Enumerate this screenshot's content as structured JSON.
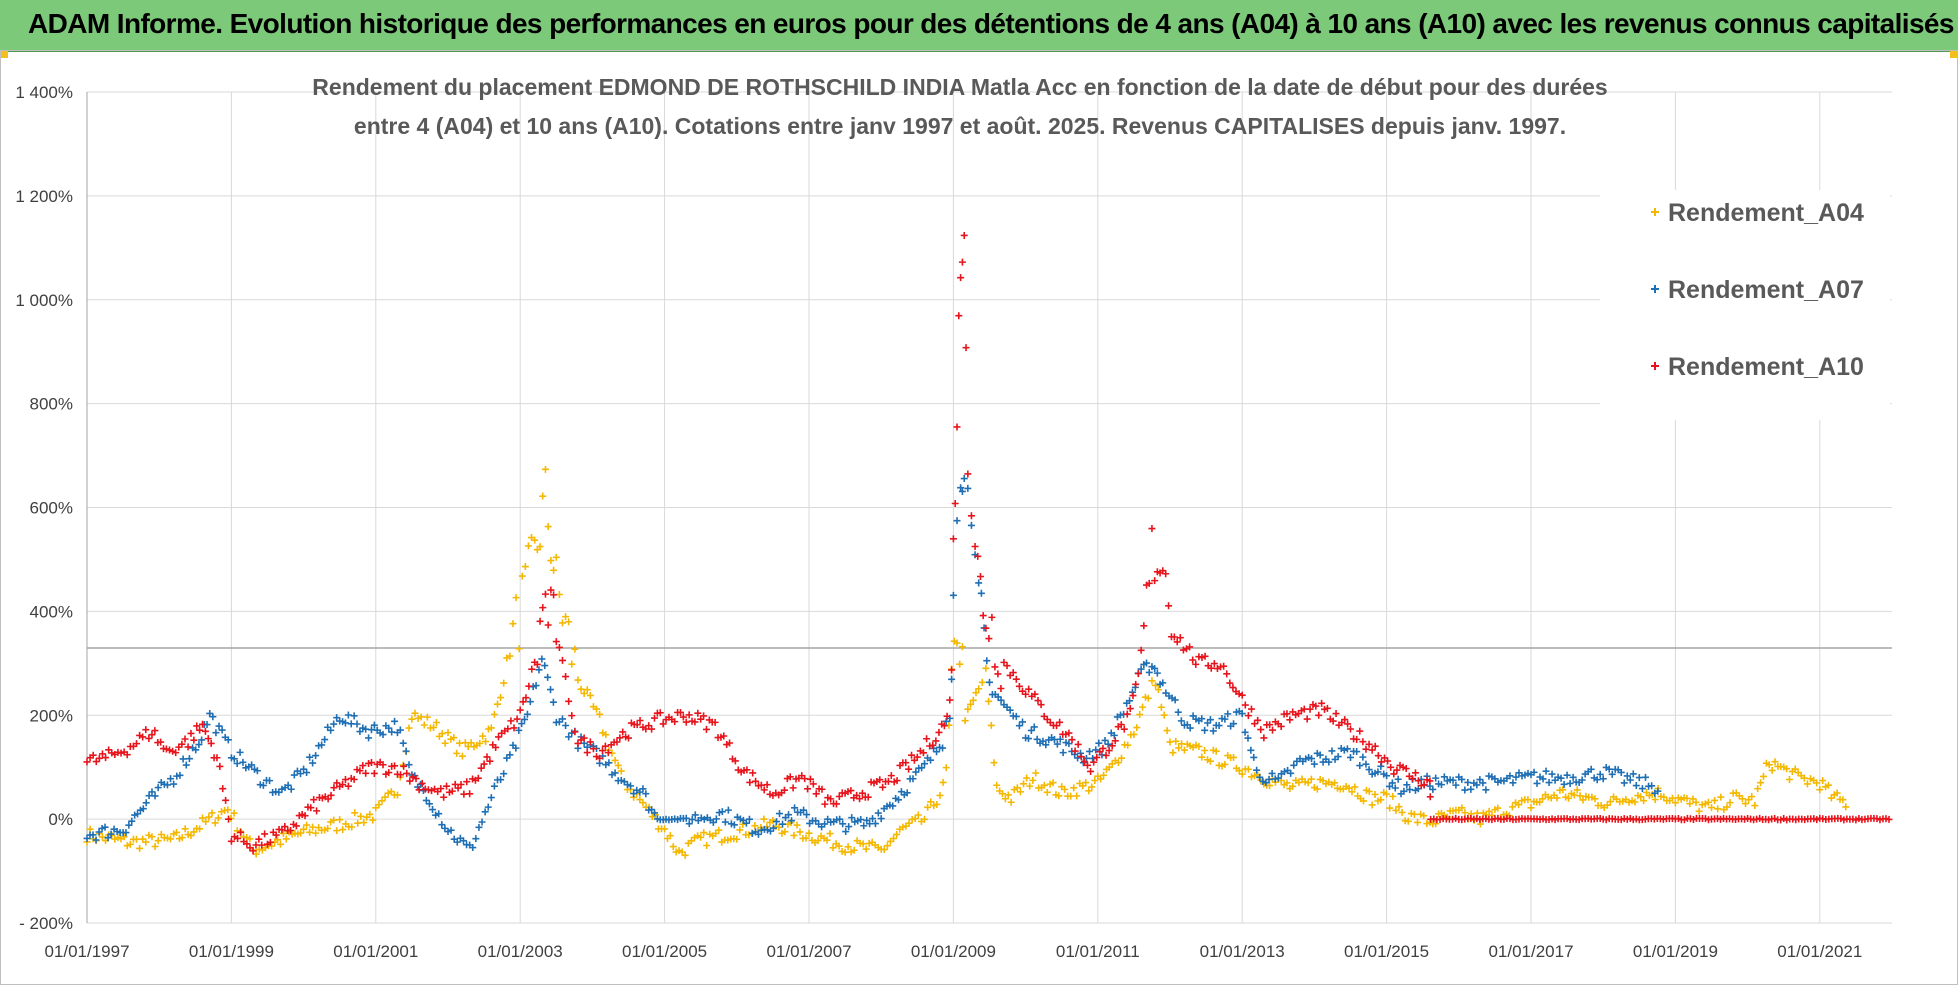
{
  "banner": {
    "title": "ADAM Informe. Evolution historique des performances en euros pour des détentions de 4 ans (A04) à 10 ans (A10) avec les revenus connus capitalisés"
  },
  "chart_data": {
    "type": "scatter",
    "title_lines": [
      "Rendement du placement EDMOND DE ROTHSCHILD INDIA Matla Acc en fonction de la date de début pour des durées",
      "entre 4 (A04) et 10 ans (A10).  Cotations entre janv 1997 et août. 2025. Revenus CAPITALISES depuis janv. 1997."
    ],
    "xlabel": "",
    "ylabel": "",
    "x_range": [
      "1997-01-01",
      "2022-01-01"
    ],
    "ylim": [
      -200,
      1400
    ],
    "y_ticks": [
      -200,
      0,
      200,
      400,
      600,
      800,
      1000,
      1200,
      1400
    ],
    "y_tick_labels": [
      "- 200%",
      "0%",
      "200%",
      "400%",
      "600%",
      "800%",
      "1 000%",
      "1 200%",
      "1 400%"
    ],
    "x_tick_labels": [
      "01/01/1997",
      "01/01/1999",
      "01/01/2001",
      "01/01/2003",
      "01/01/2005",
      "01/01/2007",
      "01/01/2009",
      "01/01/2011",
      "01/01/2013",
      "01/01/2015",
      "01/01/2017",
      "01/01/2019",
      "01/01/2021"
    ],
    "x_tick_years": [
      1997,
      1999,
      2001,
      2003,
      2005,
      2007,
      2009,
      2011,
      2013,
      2015,
      2017,
      2019,
      2021
    ],
    "grid": true,
    "legend_position": "top-right",
    "marker": "+",
    "series": [
      {
        "name": "Rendement_A04",
        "color": "#f5b800",
        "x": [
          1997.0,
          1997.6,
          1998.2,
          1998.6,
          1998.95,
          1999.3,
          1999.6,
          2000.0,
          2000.5,
          2001.0,
          2001.3,
          2001.5,
          2001.8,
          2002.2,
          2002.6,
          2002.9,
          2003.2,
          2003.35,
          2003.5,
          2003.8,
          2004.1,
          2004.4,
          2004.7,
          2005.0,
          2005.2,
          2005.5,
          2006.0,
          2006.5,
          2007.0,
          2007.5,
          2008.0,
          2008.3,
          2008.6,
          2008.9,
          2009.05,
          2009.2,
          2009.35,
          2009.45,
          2009.6,
          2009.8,
          2010.1,
          2010.5,
          2011.0,
          2011.2,
          2011.5,
          2011.7,
          2011.8,
          2012.0,
          2012.4,
          2012.8,
          2013.0,
          2013.3,
          2013.7,
          2014.0,
          2014.4,
          2014.8,
          2015.0,
          2015.3,
          2015.6,
          2016.0,
          2016.3,
          2016.7,
          2017.0,
          2017.4,
          2017.8,
          2018.1,
          2018.4,
          2018.8,
          2019.2,
          2019.5,
          2019.8,
          2020.1,
          2020.3,
          2020.7,
          2021.0,
          2021.2,
          2021.4
        ],
        "y": [
          -30,
          -45,
          -40,
          -10,
          20,
          -60,
          -45,
          -25,
          -10,
          10,
          60,
          200,
          180,
          130,
          170,
          350,
          500,
          620,
          450,
          270,
          190,
          80,
          30,
          -20,
          -65,
          -40,
          -25,
          -10,
          -30,
          -50,
          -60,
          -20,
          0,
          70,
          380,
          200,
          250,
          280,
          60,
          40,
          80,
          50,
          70,
          100,
          170,
          240,
          270,
          140,
          130,
          110,
          100,
          80,
          60,
          70,
          70,
          40,
          40,
          5,
          -5,
          10,
          0,
          20,
          30,
          50,
          40,
          30,
          45,
          50,
          30,
          20,
          40,
          35,
          110,
          80,
          70,
          40,
          30
        ]
      },
      {
        "name": "Rendement_A07",
        "color": "#1f6fb5",
        "x": [
          1997.0,
          1997.5,
          1997.9,
          1998.2,
          1998.55,
          1998.7,
          1999.0,
          1999.4,
          1999.7,
          2000.0,
          2000.5,
          2000.9,
          2001.3,
          2001.5,
          2001.7,
          2002.0,
          2002.3,
          2002.6,
          2002.9,
          2003.1,
          2003.3,
          2003.5,
          2003.8,
          2004.1,
          2004.4,
          2004.7,
          2004.9,
          2005.3,
          2005.8,
          2006.3,
          2006.8,
          2007.3,
          2007.8,
          2008.2,
          2008.6,
          2008.85,
          2008.95,
          2009.0,
          2009.1,
          2009.15,
          2009.25,
          2009.35,
          2009.5,
          2009.7,
          2010.0,
          2010.4,
          2010.8,
          2011.1,
          2011.4,
          2011.6,
          2011.75,
          2011.9,
          2012.2,
          2012.6,
          2013.0,
          2013.2,
          2013.5,
          2013.8,
          2014.2,
          2014.5,
          2014.8,
          2015.2,
          2015.6,
          2016.0,
          2016.5,
          2017.0,
          2017.5,
          2018.0,
          2018.5,
          2018.8
        ],
        "y": [
          -30,
          -20,
          40,
          80,
          150,
          200,
          130,
          80,
          50,
          90,
          200,
          170,
          180,
          80,
          50,
          -20,
          -60,
          40,
          130,
          200,
          310,
          200,
          150,
          120,
          80,
          50,
          0,
          0,
          10,
          -20,
          10,
          -10,
          -10,
          40,
          100,
          150,
          250,
          420,
          680,
          720,
          500,
          410,
          260,
          220,
          170,
          150,
          120,
          140,
          220,
          280,
          300,
          260,
          190,
          180,
          200,
          90,
          70,
          110,
          120,
          130,
          100,
          60,
          70,
          70,
          70,
          80,
          80,
          90,
          70,
          60
        ]
      },
      {
        "name": "Rendement_A10",
        "color": "#e8141c",
        "x": [
          1997.0,
          1997.3,
          1997.6,
          1997.9,
          1998.1,
          1998.4,
          1998.6,
          1998.8,
          1999.0,
          1999.3,
          1999.7,
          2000.1,
          2000.5,
          2000.9,
          2001.3,
          2001.6,
          2001.9,
          2002.3,
          2002.7,
          2003.0,
          2003.2,
          2003.35,
          2003.5,
          2003.8,
          2004.1,
          2004.5,
          2004.9,
          2005.3,
          2005.7,
          2006.1,
          2006.5,
          2006.9,
          2007.3,
          2007.7,
          2008.1,
          2008.5,
          2008.8,
          2008.95,
          2009.0,
          2009.05,
          2009.1,
          2009.15,
          2009.2,
          2009.3,
          2009.45,
          2009.7,
          2010.0,
          2010.3,
          2010.6,
          2010.9,
          2011.2,
          2011.45,
          2011.6,
          2011.75,
          2011.9,
          2012.1,
          2012.4,
          2012.7,
          2013.0,
          2013.3,
          2013.7,
          2014.1,
          2014.5,
          2014.8,
          2015.1,
          2015.4,
          2015.6,
          2015.61,
          2016.0,
          2017.0,
          2018.0,
          2019.0,
          2020.0,
          2021.0,
          2022.0
        ],
        "y": [
          110,
          120,
          140,
          170,
          130,
          150,
          180,
          120,
          -30,
          -50,
          -30,
          20,
          60,
          100,
          100,
          70,
          50,
          60,
          150,
          200,
          300,
          420,
          350,
          150,
          130,
          170,
          190,
          200,
          180,
          90,
          50,
          80,
          30,
          50,
          70,
          120,
          170,
          200,
          500,
          800,
          1050,
          1190,
          700,
          500,
          400,
          300,
          250,
          200,
          160,
          100,
          150,
          200,
          300,
          510,
          500,
          350,
          300,
          300,
          230,
          170,
          200,
          210,
          170,
          140,
          100,
          80,
          70,
          0,
          0,
          0,
          0,
          0,
          0,
          0,
          0
        ]
      }
    ]
  }
}
